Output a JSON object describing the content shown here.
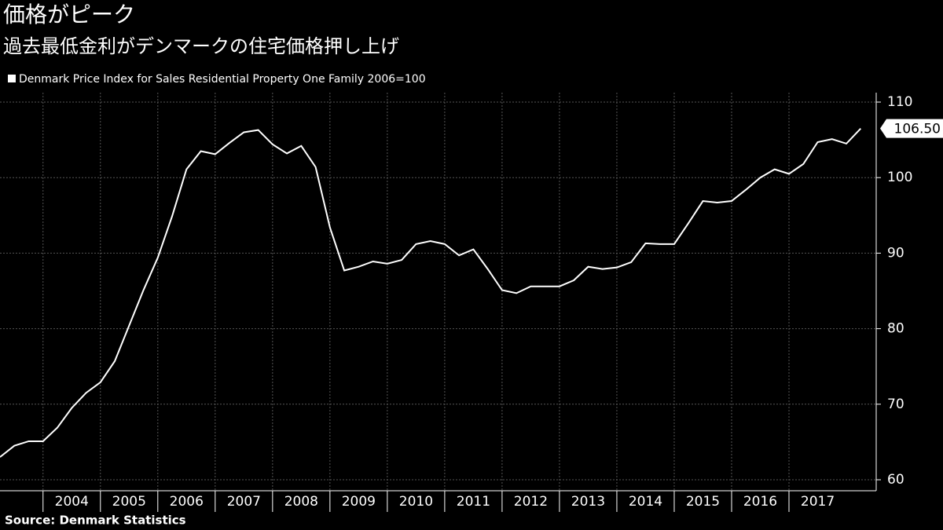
{
  "chart_data": {
    "type": "line",
    "title": "価格がピーク",
    "subtitle": "過去最低金利がデンマークの住宅価格押し上げ",
    "source": "Source:  Denmark Statistics",
    "x": [
      2003.25,
      2003.5,
      2003.75,
      2004,
      2004.25,
      2004.5,
      2004.75,
      2005,
      2005.25,
      2005.5,
      2005.75,
      2006,
      2006.25,
      2006.5,
      2006.75,
      2007,
      2007.25,
      2007.5,
      2007.75,
      2008,
      2008.25,
      2008.5,
      2008.75,
      2009,
      2009.25,
      2009.5,
      2009.75,
      2010,
      2010.25,
      2010.5,
      2010.75,
      2011,
      2011.25,
      2011.5,
      2011.75,
      2012,
      2012.25,
      2012.5,
      2012.75,
      2013,
      2013.25,
      2013.5,
      2013.75,
      2014,
      2014.25,
      2014.5,
      2014.75,
      2015,
      2015.25,
      2015.5,
      2015.75,
      2016,
      2016.25,
      2016.5,
      2016.75,
      2017,
      2017.25,
      2017.5,
      2017.75,
      2018,
      2018.25
    ],
    "series": [
      {
        "name": "Denmark Price Index for Sales Residential Property One Family 2006=100",
        "color": "#ffffff",
        "values": [
          63.0,
          64.5,
          65.1,
          65.1,
          66.9,
          69.5,
          71.5,
          72.9,
          75.7,
          80.4,
          85.1,
          89.4,
          94.9,
          101.1,
          103.5,
          103.1,
          104.6,
          106.0,
          106.3,
          104.4,
          103.2,
          104.2,
          101.4,
          93.4,
          87.7,
          88.2,
          88.9,
          88.6,
          89.1,
          91.2,
          91.6,
          91.2,
          89.7,
          90.5,
          87.9,
          85.1,
          84.7,
          85.6,
          85.6,
          85.6,
          86.4,
          88.2,
          87.9,
          88.1,
          88.8,
          91.3,
          91.2,
          91.2,
          94.0,
          96.9,
          96.7,
          96.9,
          98.4,
          100.0,
          101.1,
          100.5,
          101.8,
          104.7,
          105.1,
          104.5,
          106.5
        ],
        "value_labels": [
          null,
          null,
          null,
          null,
          null,
          null,
          null,
          null,
          null,
          null,
          null,
          null,
          null,
          null,
          null,
          null,
          null,
          null,
          null,
          null,
          null,
          null,
          null,
          null,
          null,
          null,
          null,
          null,
          null,
          null,
          null,
          null,
          null,
          null,
          null,
          null,
          null,
          null,
          null,
          null,
          null,
          null,
          null,
          null,
          null,
          null,
          null,
          null,
          null,
          null,
          null,
          null,
          null,
          null,
          null,
          null,
          null,
          null,
          null,
          null,
          "106.50"
        ]
      }
    ],
    "xlim": [
      2003.25,
      2018.52
    ],
    "xticks": [
      2004,
      2005,
      2006,
      2007,
      2008,
      2009,
      2010,
      2011,
      2012,
      2013,
      2014,
      2015,
      2016,
      2017
    ],
    "ylim": [
      60,
      110
    ],
    "yticks": [
      60,
      70,
      80,
      90,
      100,
      110
    ],
    "grid": true
  }
}
